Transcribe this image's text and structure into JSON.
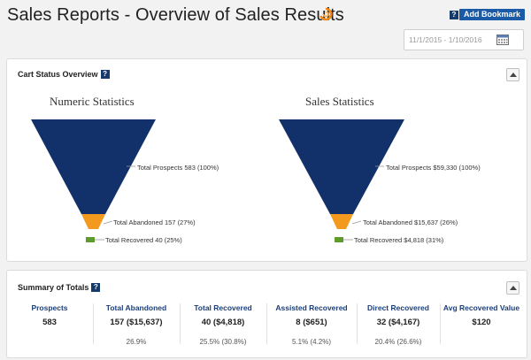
{
  "header": {
    "title": "Sales Reports - Overview of Sales Results",
    "help_glyph": "?",
    "bookmark_label": "Add Bookmark",
    "date_range": "11/1/2015 - 1/10/2016"
  },
  "cart_status": {
    "title": "Cart Status Overview",
    "help_glyph": "?",
    "numeric": {
      "title": "Numeric Statistics",
      "prospects_label": "Total Prospects 583 (100%)",
      "abandoned_label": "Total Abandoned 157 (27%)",
      "recovered_label": "Total Recovered 40 (25%)"
    },
    "sales": {
      "title": "Sales Statistics",
      "prospects_label": "Total Prospects $59,330 (100%)",
      "abandoned_label": "Total Abandoned $15,637 (26%)",
      "recovered_label": "Total Recovered $4,818 (31%)"
    },
    "colors": {
      "prospects": "#12306a",
      "abandoned": "#f39a1e",
      "recovered": "#5f9b2a"
    }
  },
  "summary": {
    "title": "Summary of Totals",
    "help_glyph": "?",
    "columns": [
      {
        "header": "Prospects",
        "value": "583",
        "pct": ""
      },
      {
        "header": "Total Abandoned",
        "value": "157  ($15,637)",
        "pct": "26.9%"
      },
      {
        "header": "Total Recovered",
        "value": "40  ($4,818)",
        "pct": "25.5%  (30.8%)"
      },
      {
        "header": "Assisted Recovered",
        "value": "8  ($651)",
        "pct": "5.1%  (4.2%)"
      },
      {
        "header": "Direct Recovered",
        "value": "32  ($4,167)",
        "pct": "20.4%  (26.6%)"
      },
      {
        "header": "Avg Recovered Value",
        "value": "$120",
        "pct": ""
      }
    ]
  }
}
